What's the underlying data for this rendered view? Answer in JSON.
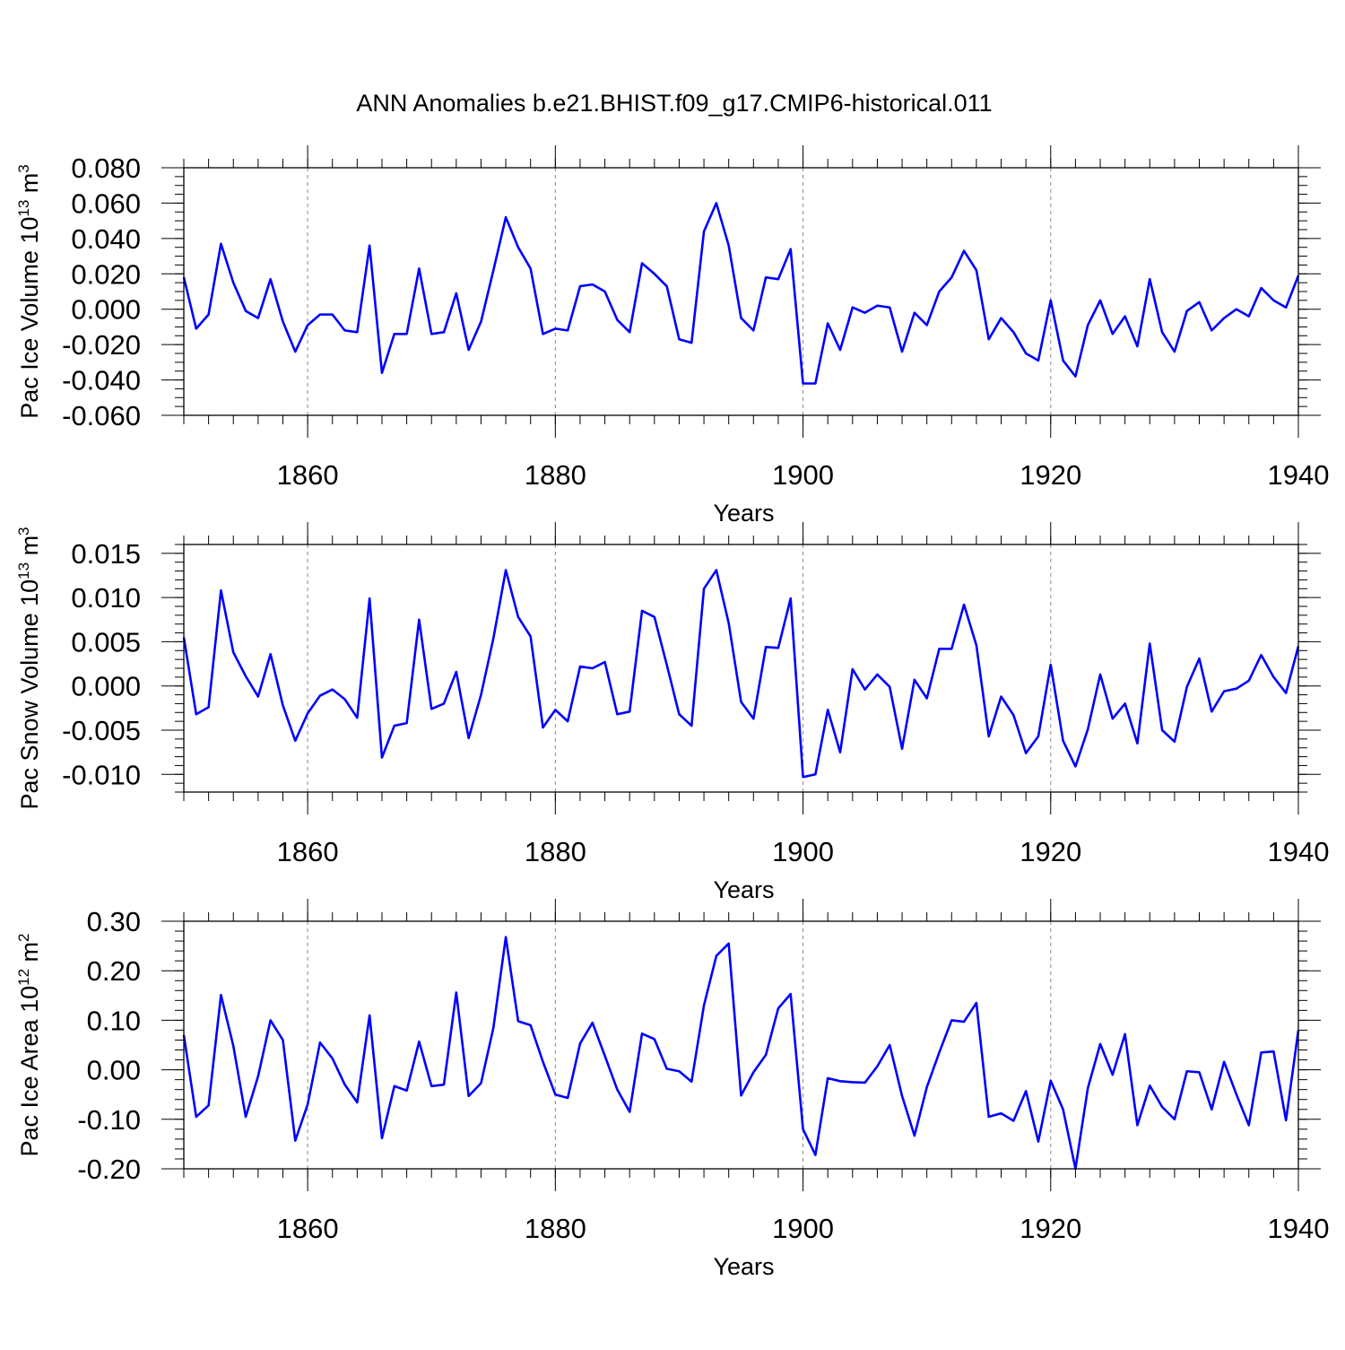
{
  "figure_title": "ANN Anomalies b.e21.BHIST.f09_g17.CMIP6-historical.011",
  "colors": {
    "series": "#0000ff",
    "axis": "#000000",
    "grid": "#888888"
  },
  "chart_data": [
    {
      "type": "line",
      "ylabel": "Pac Ice Volume 10",
      "ylabel_exp": "13",
      "ylabel_unit": " m",
      "ylabel_unit_exp": "3",
      "xlabel": "Years",
      "xlim": [
        1850,
        1940
      ],
      "ylim": [
        -0.06,
        0.08
      ],
      "ytick_values": [
        -0.06,
        -0.04,
        -0.02,
        0.0,
        0.02,
        0.04,
        0.06,
        0.08
      ],
      "ytick_labels": [
        "-0.060",
        "-0.040",
        "-0.020",
        "0.000",
        "0.020",
        "0.040",
        "0.060",
        "0.080"
      ],
      "yminor_step": 0.005,
      "xtick_values": [
        1860,
        1880,
        1900,
        1920,
        1940
      ],
      "xtick_labels": [
        "1860",
        "1880",
        "1900",
        "1920",
        "1940"
      ],
      "grid_x": true,
      "x_start": 1850,
      "values": [
        0.018,
        -0.011,
        -0.003,
        0.037,
        0.015,
        -0.001,
        -0.005,
        0.017,
        -0.007,
        -0.024,
        -0.009,
        -0.003,
        -0.003,
        -0.012,
        -0.013,
        0.036,
        -0.036,
        -0.014,
        -0.014,
        0.023,
        -0.014,
        -0.013,
        0.009,
        -0.023,
        -0.007,
        0.022,
        0.052,
        0.035,
        0.023,
        -0.014,
        -0.011,
        -0.012,
        0.013,
        0.014,
        0.01,
        -0.006,
        -0.013,
        0.026,
        0.02,
        0.013,
        -0.017,
        -0.019,
        0.044,
        0.06,
        0.036,
        -0.005,
        -0.012,
        0.018,
        0.017,
        0.034,
        -0.042,
        -0.042,
        -0.008,
        -0.023,
        0.001,
        -0.002,
        0.002,
        0.001,
        -0.024,
        -0.002,
        -0.009,
        0.01,
        0.018,
        0.033,
        0.022,
        -0.017,
        -0.005,
        -0.013,
        -0.025,
        -0.029,
        0.005,
        -0.029,
        -0.038,
        -0.009,
        0.005,
        -0.014,
        -0.004,
        -0.021,
        0.017,
        -0.013,
        -0.024,
        -0.001,
        0.004,
        -0.012,
        -0.005,
        0.0,
        -0.004,
        0.012,
        0.005,
        0.001,
        0.019
      ]
    },
    {
      "type": "line",
      "ylabel": "Pac Snow Volume 10",
      "ylabel_exp": "13",
      "ylabel_unit": " m",
      "ylabel_unit_exp": "3",
      "xlabel": "Years",
      "xlim": [
        1850,
        1940
      ],
      "ylim": [
        -0.012,
        0.016
      ],
      "ytick_values": [
        -0.01,
        -0.005,
        0.0,
        0.005,
        0.01,
        0.015
      ],
      "ytick_labels": [
        "-0.010",
        "-0.005",
        "0.000",
        "0.005",
        "0.010",
        "0.015"
      ],
      "yminor_step": 0.001,
      "xtick_values": [
        1860,
        1880,
        1900,
        1920,
        1940
      ],
      "xtick_labels": [
        "1860",
        "1880",
        "1900",
        "1920",
        "1940"
      ],
      "grid_x": true,
      "x_start": 1850,
      "values": [
        0.0055,
        -0.0032,
        -0.0024,
        0.0108,
        0.0038,
        0.0011,
        -0.0012,
        0.0036,
        -0.0022,
        -0.0062,
        -0.0031,
        -0.0011,
        -0.0004,
        -0.0015,
        -0.0036,
        0.0099,
        -0.0081,
        -0.0045,
        -0.0042,
        0.0075,
        -0.0026,
        -0.002,
        0.0016,
        -0.0059,
        -0.001,
        0.0054,
        0.0131,
        0.0078,
        0.0056,
        -0.0047,
        -0.0027,
        -0.004,
        0.0022,
        0.002,
        0.0027,
        -0.0032,
        -0.0029,
        0.0085,
        0.0078,
        0.0024,
        -0.0032,
        -0.0045,
        0.011,
        0.0131,
        0.0071,
        -0.0018,
        -0.0037,
        0.0044,
        0.0043,
        0.0099,
        -0.0103,
        -0.01,
        -0.0027,
        -0.0075,
        0.0019,
        -0.0004,
        0.0013,
        -0.0001,
        -0.0071,
        0.0007,
        -0.0014,
        0.0042,
        0.0042,
        0.0092,
        0.0046,
        -0.0057,
        -0.0012,
        -0.0033,
        -0.0076,
        -0.0057,
        0.0024,
        -0.0062,
        -0.0091,
        -0.0049,
        0.0013,
        -0.0037,
        -0.002,
        -0.0065,
        0.0048,
        -0.005,
        -0.0063,
        -0.0001,
        0.0031,
        -0.0029,
        -0.0006,
        -0.0003,
        0.0006,
        0.0035,
        0.001,
        -0.0008,
        0.0045
      ]
    },
    {
      "type": "line",
      "ylabel": "Pac Ice Area 10",
      "ylabel_exp": "12",
      "ylabel_unit": " m",
      "ylabel_unit_exp": "2",
      "xlabel": "Years",
      "xlim": [
        1850,
        1940
      ],
      "ylim": [
        -0.2,
        0.3
      ],
      "ytick_values": [
        -0.2,
        -0.1,
        0.0,
        0.1,
        0.2,
        0.3
      ],
      "ytick_labels": [
        "-0.20",
        "-0.10",
        "0.00",
        "0.10",
        "0.20",
        "0.30"
      ],
      "yminor_step": 0.02,
      "xtick_values": [
        1860,
        1880,
        1900,
        1920,
        1940
      ],
      "xtick_labels": [
        "1860",
        "1880",
        "1900",
        "1920",
        "1940"
      ],
      "grid_x": true,
      "x_start": 1850,
      "values": [
        0.07,
        -0.095,
        -0.072,
        0.151,
        0.048,
        -0.095,
        -0.013,
        0.1,
        0.06,
        -0.143,
        -0.07,
        0.055,
        0.023,
        -0.03,
        -0.066,
        0.11,
        -0.138,
        -0.033,
        -0.042,
        0.057,
        -0.033,
        -0.03,
        0.156,
        -0.053,
        -0.027,
        0.085,
        0.268,
        0.098,
        0.09,
        0.016,
        -0.05,
        -0.057,
        0.053,
        0.095,
        0.028,
        -0.04,
        -0.085,
        0.073,
        0.062,
        0.002,
        -0.003,
        -0.024,
        0.13,
        0.23,
        0.255,
        -0.052,
        -0.005,
        0.03,
        0.124,
        0.153,
        -0.12,
        -0.172,
        -0.017,
        -0.023,
        -0.025,
        -0.026,
        0.007,
        0.05,
        -0.053,
        -0.133,
        -0.035,
        0.035,
        0.1,
        0.097,
        0.135,
        -0.095,
        -0.088,
        -0.103,
        -0.043,
        -0.145,
        -0.022,
        -0.08,
        -0.2,
        -0.037,
        0.052,
        -0.01,
        0.072,
        -0.112,
        -0.032,
        -0.075,
        -0.1,
        -0.003,
        -0.005,
        -0.08,
        0.016,
        -0.05,
        -0.112,
        0.035,
        0.037,
        -0.102,
        0.08
      ]
    }
  ]
}
